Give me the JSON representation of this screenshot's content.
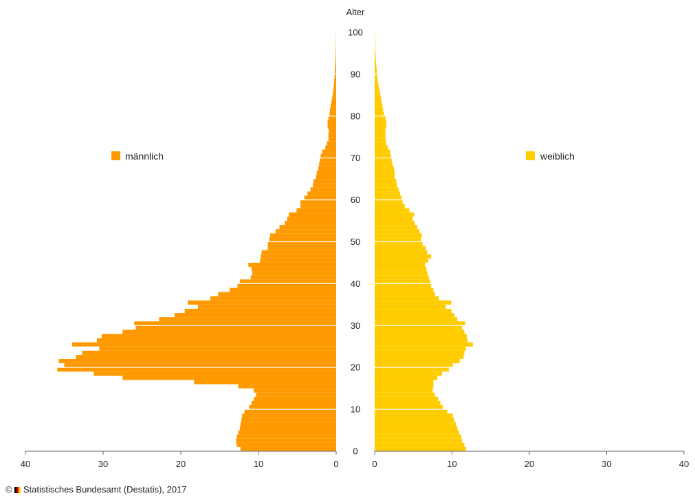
{
  "chart_data": {
    "type": "bar",
    "orientation": "population-pyramid",
    "ylabel": "Alter",
    "y_range": [
      0,
      100
    ],
    "y_ticks": [
      0,
      10,
      20,
      30,
      40,
      50,
      60,
      70,
      80,
      90,
      100
    ],
    "x_range": [
      0,
      40
    ],
    "x_ticks": [
      40,
      30,
      20,
      10,
      0
    ],
    "x_ticks_right": [
      0,
      10,
      20,
      30,
      40
    ],
    "grid": "horizontal white lines every 10 years",
    "legend_placement": "inside, left and right",
    "categories": [
      0,
      1,
      2,
      3,
      4,
      5,
      6,
      7,
      8,
      9,
      10,
      11,
      12,
      13,
      14,
      15,
      16,
      17,
      18,
      19,
      20,
      21,
      22,
      23,
      24,
      25,
      26,
      27,
      28,
      29,
      30,
      31,
      32,
      33,
      34,
      35,
      36,
      37,
      38,
      39,
      40,
      41,
      42,
      43,
      44,
      45,
      46,
      47,
      48,
      49,
      50,
      51,
      52,
      53,
      54,
      55,
      56,
      57,
      58,
      59,
      60,
      61,
      62,
      63,
      64,
      65,
      66,
      67,
      68,
      69,
      70,
      71,
      72,
      73,
      74,
      75,
      76,
      77,
      78,
      79,
      80,
      81,
      82,
      83,
      84,
      85,
      86,
      87,
      88,
      89,
      90,
      91,
      92,
      93,
      94,
      95,
      96,
      97,
      98,
      99,
      100
    ],
    "series": [
      {
        "name": "männlich",
        "side": "left",
        "color": "#ff9900",
        "values": [
          12.3,
          12.8,
          12.9,
          12.8,
          12.6,
          12.4,
          12.3,
          12.2,
          12.1,
          11.8,
          11.2,
          10.9,
          10.6,
          10.3,
          10.6,
          12.6,
          18.3,
          27.5,
          31.2,
          35.9,
          35,
          35.7,
          33.5,
          32.7,
          30.5,
          34,
          30.8,
          30.2,
          27.5,
          25.8,
          26,
          22.8,
          20.8,
          19.5,
          17.8,
          19.1,
          16.2,
          15.2,
          13.7,
          12.7,
          12.4,
          11,
          10.8,
          10.9,
          11.3,
          9.8,
          9.7,
          9.6,
          8.8,
          8.8,
          8.6,
          8.5,
          7.8,
          7.3,
          6.6,
          6.3,
          6.1,
          5.1,
          4.6,
          4.6,
          4.1,
          3.7,
          3.3,
          3,
          2.9,
          2.6,
          2.5,
          2.3,
          2.2,
          2.1,
          2,
          1.8,
          1.4,
          1.2,
          1,
          1,
          0.95,
          1.1,
          1.1,
          1,
          0.85,
          0.8,
          0.7,
          0.6,
          0.5,
          0.42,
          0.35,
          0.3,
          0.25,
          0.2,
          0.17,
          0.14,
          0.11,
          0.09,
          0.07,
          0.05,
          0.04,
          0.03,
          0.02,
          0.015,
          0.01
        ]
      },
      {
        "name": "weiblich",
        "side": "right",
        "color": "#ffcc00",
        "values": [
          11.8,
          11.6,
          11.3,
          11.2,
          10.9,
          10.7,
          10.5,
          10.3,
          10.1,
          9.4,
          8.8,
          8.5,
          8.2,
          7.8,
          7.5,
          7.6,
          7.6,
          8.1,
          8.7,
          9.6,
          10.1,
          11,
          11.5,
          11.6,
          11.8,
          12.7,
          12,
          11.9,
          11.6,
          11.3,
          11.7,
          10.7,
          10.3,
          9.9,
          9.2,
          9.9,
          8.3,
          7.8,
          7.6,
          7.3,
          7.2,
          7,
          6.8,
          6.7,
          6.5,
          6.9,
          7.3,
          6.8,
          6.6,
          6.2,
          6,
          6.1,
          5.8,
          5.5,
          5.2,
          4.9,
          5.1,
          4.5,
          3.9,
          3.6,
          3.5,
          3.3,
          3.1,
          2.9,
          2.8,
          2.6,
          2.6,
          2.5,
          2.3,
          2.2,
          2.1,
          2,
          1.7,
          1.5,
          1.4,
          1.4,
          1.4,
          1.5,
          1.5,
          1.4,
          1.2,
          1.1,
          1,
          0.9,
          0.8,
          0.7,
          0.6,
          0.5,
          0.4,
          0.35,
          0.3,
          0.25,
          0.2,
          0.15,
          0.12,
          0.09,
          0.07,
          0.05,
          0.04,
          0.03,
          0.02
        ]
      }
    ]
  },
  "legend": {
    "male": "männlich",
    "female": "weiblich"
  },
  "footer": {
    "copyright_symbol": "©",
    "logo_icon": "destatis-logo-icon",
    "text": "Statistisches Bundesamt (Destatis), 2017"
  }
}
